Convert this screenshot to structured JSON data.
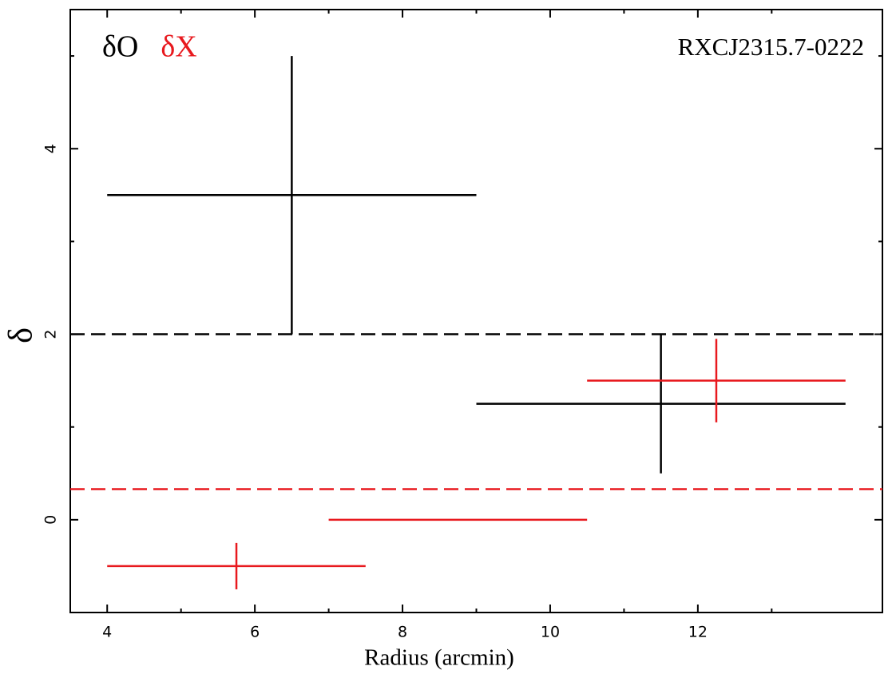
{
  "chart_data": {
    "type": "errorbar",
    "annotation": "RXCJ2315.7-0222",
    "xlabel": "Radius (arcmin)",
    "ylabel": "δ",
    "xlim": [
      3.5,
      14.5
    ],
    "ylim": [
      -1,
      5.5
    ],
    "xticks": [
      4,
      6,
      8,
      10,
      12
    ],
    "yticks": [
      0,
      2,
      4
    ],
    "xminor": [
      5,
      7,
      9,
      11,
      13
    ],
    "yminor": [
      1,
      3,
      5
    ],
    "series": [
      {
        "name": "δO",
        "color": "#000000",
        "x": [
          6.5,
          11.5
        ],
        "xerr": [
          2.5,
          2.5
        ],
        "values": [
          3.5,
          1.25
        ],
        "yerr": [
          1.5,
          0.75
        ]
      },
      {
        "name": "δX",
        "color": "#e8191e",
        "x": [
          12.25,
          8.75,
          5.75
        ],
        "xerr": [
          1.75,
          1.75,
          1.75
        ],
        "values": [
          1.5,
          0,
          -0.5
        ],
        "yerr": [
          0.45,
          0,
          0.25
        ]
      }
    ],
    "hlines": [
      {
        "value": 2,
        "color": "#000000"
      },
      {
        "value": 0.33,
        "color": "#e8191e"
      }
    ]
  }
}
